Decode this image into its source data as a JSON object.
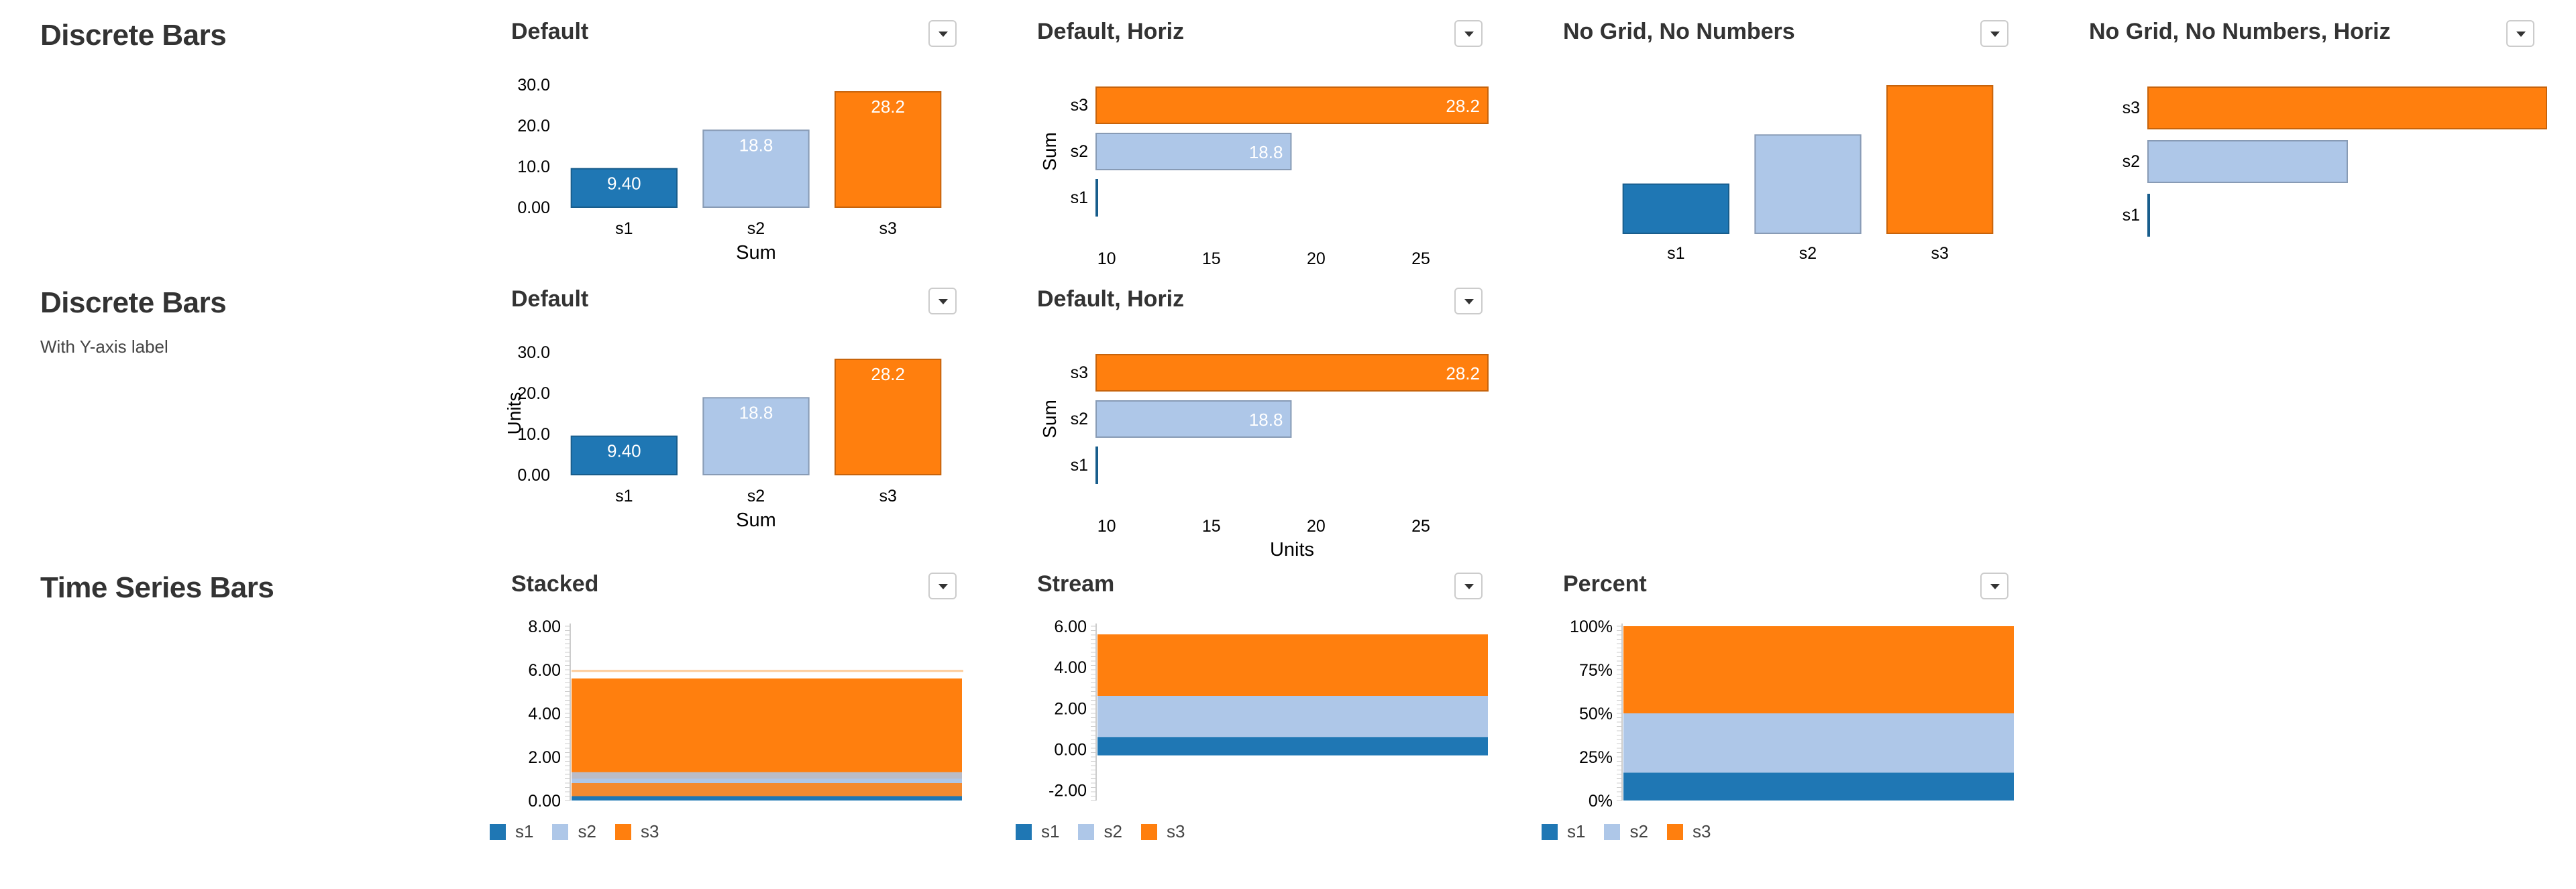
{
  "colors": {
    "s1": "#1f77b4",
    "s2": "#aec7e8",
    "s3": "#ff7f0e"
  },
  "sections": [
    {
      "title": "Discrete Bars",
      "subtitle": ""
    },
    {
      "title": "Discrete Bars",
      "subtitle": "With Y-axis label"
    },
    {
      "title": "Time Series Bars",
      "subtitle": ""
    }
  ],
  "panels": [
    {
      "title": "Default"
    },
    {
      "title": "Default, Horiz"
    },
    {
      "title": "No Grid, No Numbers"
    },
    {
      "title": "No Grid, No Numbers, Horiz"
    },
    {
      "title": "Default"
    },
    {
      "title": "Default, Horiz"
    },
    {
      "title": "Stacked"
    },
    {
      "title": "Stream"
    },
    {
      "title": "Percent"
    }
  ],
  "legend": [
    "s1",
    "s2",
    "s3"
  ],
  "chart_data": [
    {
      "type": "bar",
      "categories": [
        "s1",
        "s2",
        "s3"
      ],
      "values": [
        9.4,
        18.8,
        28.2
      ],
      "value_labels": [
        "9.40",
        "18.8",
        "28.2"
      ],
      "xlabel": "Sum",
      "ylabel": "",
      "ylim": [
        0,
        30
      ],
      "yticks": [
        "0.00",
        "10.0",
        "20.0",
        "30.0"
      ],
      "grid": true
    },
    {
      "type": "bar",
      "orientation": "horizontal",
      "categories": [
        "s3",
        "s2",
        "s1"
      ],
      "values": [
        28.2,
        18.8,
        9.4
      ],
      "value_labels": [
        "28.2",
        "18.8",
        ""
      ],
      "xlabel": "",
      "ylabel": "Sum",
      "xlim": [
        9.5,
        28.2
      ],
      "xticks": [
        "10",
        "15",
        "20",
        "25"
      ],
      "grid": true
    },
    {
      "type": "bar",
      "categories": [
        "s1",
        "s2",
        "s3"
      ],
      "values": [
        9.4,
        18.8,
        28.2
      ],
      "xlabel": "",
      "ylabel": "",
      "ylim": [
        0,
        28.2
      ],
      "grid": false
    },
    {
      "type": "bar",
      "orientation": "horizontal",
      "categories": [
        "s3",
        "s2",
        "s1"
      ],
      "values": [
        28.2,
        18.8,
        9.4
      ],
      "xlabel": "",
      "ylabel": "",
      "xlim": [
        9.4,
        28.2
      ],
      "grid": false
    },
    {
      "type": "bar",
      "categories": [
        "s1",
        "s2",
        "s3"
      ],
      "values": [
        9.4,
        18.8,
        28.2
      ],
      "value_labels": [
        "9.40",
        "18.8",
        "28.2"
      ],
      "xlabel": "Sum",
      "ylabel": "Units",
      "ylim": [
        0,
        30
      ],
      "yticks": [
        "0.00",
        "10.0",
        "20.0",
        "30.0"
      ],
      "grid": true
    },
    {
      "type": "bar",
      "orientation": "horizontal",
      "categories": [
        "s3",
        "s2",
        "s1"
      ],
      "values": [
        28.2,
        18.8,
        9.4
      ],
      "value_labels": [
        "28.2",
        "18.8",
        ""
      ],
      "xlabel": "Units",
      "ylabel": "Sum",
      "xlim": [
        9.5,
        28.2
      ],
      "xticks": [
        "10",
        "15",
        "20",
        "25"
      ],
      "grid": true
    },
    {
      "type": "area",
      "stacking": "stacked",
      "series": [
        {
          "name": "s1",
          "values": [
            0.2
          ]
        },
        {
          "name": "s2",
          "values": [
            0.8
          ]
        },
        {
          "name": "s3",
          "values": [
            4.6
          ]
        }
      ],
      "overlay": [
        {
          "series": "s2",
          "y0": 0.2,
          "y1": 1.3
        },
        {
          "series": "s3",
          "y0": 0.2,
          "y1": 0.8
        }
      ],
      "ylim": [
        0,
        8
      ],
      "yticks": [
        "0.00",
        "2.00",
        "4.00",
        "6.00",
        "8.00"
      ],
      "top_line": 6.0
    },
    {
      "type": "area",
      "stacking": "stream",
      "series": [
        {
          "name": "s1",
          "values": [
            0.9
          ]
        },
        {
          "name": "s2",
          "values": [
            2.0
          ]
        },
        {
          "name": "s3",
          "values": [
            3.0
          ]
        }
      ],
      "baseline": -0.3,
      "ylim": [
        -2.5,
        6
      ],
      "yticks": [
        "-2.00",
        "0.00",
        "2.00",
        "4.00",
        "6.00"
      ]
    },
    {
      "type": "area",
      "stacking": "percent",
      "series": [
        {
          "name": "s1",
          "values": [
            0.16
          ]
        },
        {
          "name": "s2",
          "values": [
            0.34
          ]
        },
        {
          "name": "s3",
          "values": [
            0.5
          ]
        }
      ],
      "ylim": [
        0,
        1
      ],
      "yticks": [
        "0%",
        "25%",
        "50%",
        "75%",
        "100%"
      ]
    }
  ]
}
